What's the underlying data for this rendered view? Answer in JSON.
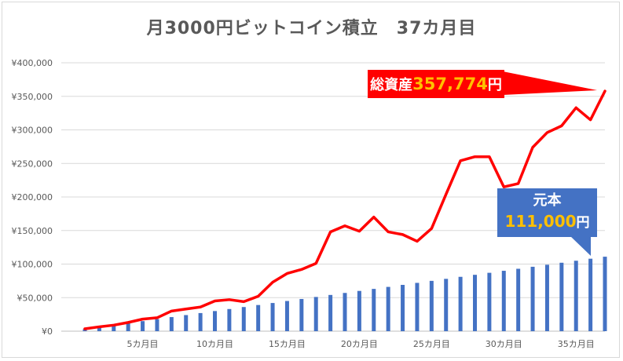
{
  "chart_data": {
    "type": "bar+line",
    "title": "月3000円ビットコイン積立　37カ月目",
    "x_tick_labels": [
      "5カ月目",
      "10カ月目",
      "15カ月目",
      "20カ月目",
      "25カ月目",
      "30カ月目",
      "35カ月目"
    ],
    "x_tick_months": [
      5,
      10,
      15,
      20,
      25,
      30,
      35
    ],
    "y_tick_labels": [
      "¥0",
      "¥50,000",
      "¥100,000",
      "¥150,000",
      "¥200,000",
      "¥250,000",
      "¥300,000",
      "¥350,000",
      "¥400,000"
    ],
    "ylim": [
      0,
      400000
    ],
    "grid": true,
    "series": [
      {
        "type": "bar",
        "color": "#4472c4",
        "values": [
          3000,
          6000,
          9000,
          12000,
          15000,
          18000,
          21000,
          24000,
          27000,
          30000,
          33000,
          36000,
          39000,
          42000,
          45000,
          48000,
          51000,
          54000,
          57000,
          60000,
          63000,
          66000,
          69000,
          72000,
          75000,
          78000,
          81000,
          84000,
          87000,
          90000,
          93000,
          96000,
          99000,
          102000,
          105000,
          108000,
          111000
        ]
      },
      {
        "type": "line",
        "color": "#ff0000",
        "values": [
          3500,
          6500,
          9000,
          13000,
          18000,
          20000,
          30000,
          33000,
          36000,
          45000,
          47000,
          44000,
          52000,
          73000,
          86000,
          92000,
          101000,
          148000,
          157000,
          149000,
          170000,
          148000,
          144000,
          134000,
          153000,
          204000,
          254000,
          260000,
          260000,
          215000,
          220000,
          274000,
          296000,
          306000,
          333000,
          315000,
          357774
        ]
      }
    ],
    "annotations": [
      {
        "label": "総資産",
        "value": "357,774",
        "unit": "円",
        "color": "#ff0000"
      },
      {
        "label": "元本",
        "value": "111,000",
        "unit": "円",
        "color": "#4472c4"
      }
    ]
  }
}
